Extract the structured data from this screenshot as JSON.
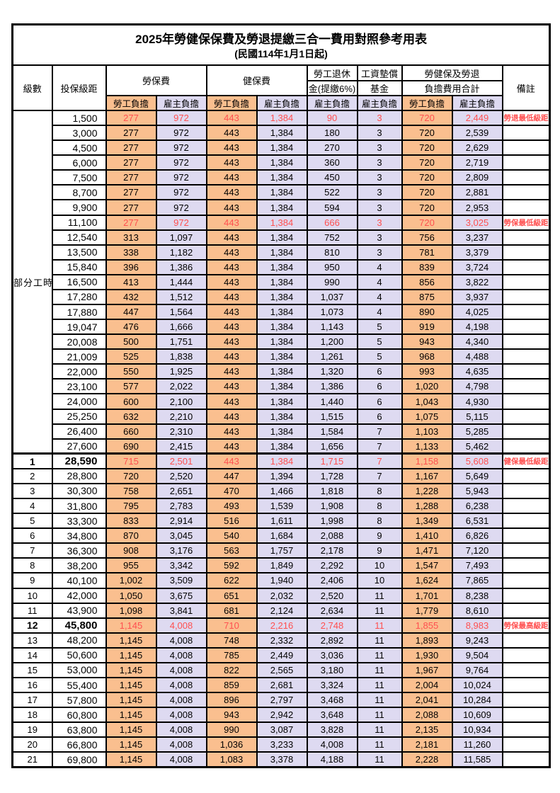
{
  "title": "2025年勞健保保費及勞退提繳三合一費用對照參考用表",
  "subtitle": "(民國114年1月1日起)",
  "colors": {
    "employee_bg": "#FABF8F",
    "employer_bg": "#DEDAF1",
    "highlight_red": "#FF5050",
    "grid": "#000000"
  },
  "header": {
    "level": "級數",
    "bracket": "投保級距",
    "labor_group": "勞保費",
    "health_group": "健保費",
    "pension_line1": "勞工退休",
    "pension_line2": "金(提繳6%)",
    "wage_fund_line1": "工資墊償",
    "wage_fund_line2": "基金",
    "total_line1": "勞健保及勞退",
    "total_line2": "負擔費用合計",
    "note": "備註",
    "employee": "勞工負擔",
    "employer": "雇主負擔"
  },
  "part_time_label": "部分工時",
  "part_time_span": 23,
  "rows": [
    {
      "bracket": "1,500",
      "values": [
        "277",
        "972",
        "443",
        "1,384",
        "90",
        "3",
        "720",
        "2,449"
      ],
      "note": "勞退最低級距",
      "red": true
    },
    {
      "bracket": "3,000",
      "values": [
        "277",
        "972",
        "443",
        "1,384",
        "180",
        "3",
        "720",
        "2,539"
      ]
    },
    {
      "bracket": "4,500",
      "values": [
        "277",
        "972",
        "443",
        "1,384",
        "270",
        "3",
        "720",
        "2,629"
      ]
    },
    {
      "bracket": "6,000",
      "values": [
        "277",
        "972",
        "443",
        "1,384",
        "360",
        "3",
        "720",
        "2,719"
      ]
    },
    {
      "bracket": "7,500",
      "values": [
        "277",
        "972",
        "443",
        "1,384",
        "450",
        "3",
        "720",
        "2,809"
      ]
    },
    {
      "bracket": "8,700",
      "values": [
        "277",
        "972",
        "443",
        "1,384",
        "522",
        "3",
        "720",
        "2,881"
      ]
    },
    {
      "bracket": "9,900",
      "values": [
        "277",
        "972",
        "443",
        "1,384",
        "594",
        "3",
        "720",
        "2,953"
      ]
    },
    {
      "bracket": "11,100",
      "values": [
        "277",
        "972",
        "443",
        "1,384",
        "666",
        "3",
        "720",
        "3,025"
      ],
      "note": "勞保最低級距",
      "red": true
    },
    {
      "bracket": "12,540",
      "values": [
        "313",
        "1,097",
        "443",
        "1,384",
        "752",
        "3",
        "756",
        "3,237"
      ]
    },
    {
      "bracket": "13,500",
      "values": [
        "338",
        "1,182",
        "443",
        "1,384",
        "810",
        "3",
        "781",
        "3,379"
      ]
    },
    {
      "bracket": "15,840",
      "values": [
        "396",
        "1,386",
        "443",
        "1,384",
        "950",
        "4",
        "839",
        "3,724"
      ]
    },
    {
      "bracket": "16,500",
      "values": [
        "413",
        "1,444",
        "443",
        "1,384",
        "990",
        "4",
        "856",
        "3,822"
      ]
    },
    {
      "bracket": "17,280",
      "values": [
        "432",
        "1,512",
        "443",
        "1,384",
        "1,037",
        "4",
        "875",
        "3,937"
      ]
    },
    {
      "bracket": "17,880",
      "values": [
        "447",
        "1,564",
        "443",
        "1,384",
        "1,073",
        "4",
        "890",
        "4,025"
      ]
    },
    {
      "bracket": "19,047",
      "values": [
        "476",
        "1,666",
        "443",
        "1,384",
        "1,143",
        "5",
        "919",
        "4,198"
      ]
    },
    {
      "bracket": "20,008",
      "values": [
        "500",
        "1,751",
        "443",
        "1,384",
        "1,200",
        "5",
        "943",
        "4,340"
      ]
    },
    {
      "bracket": "21,009",
      "values": [
        "525",
        "1,838",
        "443",
        "1,384",
        "1,261",
        "5",
        "968",
        "4,488"
      ]
    },
    {
      "bracket": "22,000",
      "values": [
        "550",
        "1,925",
        "443",
        "1,384",
        "1,320",
        "6",
        "993",
        "4,635"
      ]
    },
    {
      "bracket": "23,100",
      "values": [
        "577",
        "2,022",
        "443",
        "1,384",
        "1,386",
        "6",
        "1,020",
        "4,798"
      ]
    },
    {
      "bracket": "24,000",
      "values": [
        "600",
        "2,100",
        "443",
        "1,384",
        "1,440",
        "6",
        "1,043",
        "4,930"
      ]
    },
    {
      "bracket": "25,250",
      "values": [
        "632",
        "2,210",
        "443",
        "1,384",
        "1,515",
        "6",
        "1,075",
        "5,115"
      ]
    },
    {
      "bracket": "26,400",
      "values": [
        "660",
        "2,310",
        "443",
        "1,384",
        "1,584",
        "7",
        "1,103",
        "5,285"
      ]
    },
    {
      "bracket": "27,600",
      "values": [
        "690",
        "2,415",
        "443",
        "1,384",
        "1,656",
        "7",
        "1,133",
        "5,462"
      ]
    },
    {
      "level": "1",
      "bracket": "28,590",
      "values": [
        "715",
        "2,501",
        "443",
        "1,384",
        "1,715",
        "7",
        "1,158",
        "5,608"
      ],
      "note": "健保最低級距",
      "red": true,
      "key": true,
      "sect": true
    },
    {
      "level": "2",
      "bracket": "28,800",
      "values": [
        "720",
        "2,520",
        "447",
        "1,394",
        "1,728",
        "7",
        "1,167",
        "5,649"
      ]
    },
    {
      "level": "3",
      "bracket": "30,300",
      "values": [
        "758",
        "2,651",
        "470",
        "1,466",
        "1,818",
        "8",
        "1,228",
        "5,943"
      ]
    },
    {
      "level": "4",
      "bracket": "31,800",
      "values": [
        "795",
        "2,783",
        "493",
        "1,539",
        "1,908",
        "8",
        "1,288",
        "6,238"
      ]
    },
    {
      "level": "5",
      "bracket": "33,300",
      "values": [
        "833",
        "2,914",
        "516",
        "1,611",
        "1,998",
        "8",
        "1,349",
        "6,531"
      ]
    },
    {
      "level": "6",
      "bracket": "34,800",
      "values": [
        "870",
        "3,045",
        "540",
        "1,684",
        "2,088",
        "9",
        "1,410",
        "6,826"
      ]
    },
    {
      "level": "7",
      "bracket": "36,300",
      "values": [
        "908",
        "3,176",
        "563",
        "1,757",
        "2,178",
        "9",
        "1,471",
        "7,120"
      ]
    },
    {
      "level": "8",
      "bracket": "38,200",
      "values": [
        "955",
        "3,342",
        "592",
        "1,849",
        "2,292",
        "10",
        "1,547",
        "7,493"
      ]
    },
    {
      "level": "9",
      "bracket": "40,100",
      "values": [
        "1,002",
        "3,509",
        "622",
        "1,940",
        "2,406",
        "10",
        "1,624",
        "7,865"
      ]
    },
    {
      "level": "10",
      "bracket": "42,000",
      "values": [
        "1,050",
        "3,675",
        "651",
        "2,032",
        "2,520",
        "11",
        "1,701",
        "8,238"
      ]
    },
    {
      "level": "11",
      "bracket": "43,900",
      "values": [
        "1,098",
        "3,841",
        "681",
        "2,124",
        "2,634",
        "11",
        "1,779",
        "8,610"
      ]
    },
    {
      "level": "12",
      "bracket": "45,800",
      "values": [
        "1,145",
        "4,008",
        "710",
        "2,216",
        "2,748",
        "11",
        "1,855",
        "8,983"
      ],
      "note": "勞保最高級距",
      "red": true,
      "key": true
    },
    {
      "level": "13",
      "bracket": "48,200",
      "values": [
        "1,145",
        "4,008",
        "748",
        "2,332",
        "2,892",
        "11",
        "1,893",
        "9,243"
      ]
    },
    {
      "level": "14",
      "bracket": "50,600",
      "values": [
        "1,145",
        "4,008",
        "785",
        "2,449",
        "3,036",
        "11",
        "1,930",
        "9,504"
      ]
    },
    {
      "level": "15",
      "bracket": "53,000",
      "values": [
        "1,145",
        "4,008",
        "822",
        "2,565",
        "3,180",
        "11",
        "1,967",
        "9,764"
      ]
    },
    {
      "level": "16",
      "bracket": "55,400",
      "values": [
        "1,145",
        "4,008",
        "859",
        "2,681",
        "3,324",
        "11",
        "2,004",
        "10,024"
      ]
    },
    {
      "level": "17",
      "bracket": "57,800",
      "values": [
        "1,145",
        "4,008",
        "896",
        "2,797",
        "3,468",
        "11",
        "2,041",
        "10,284"
      ]
    },
    {
      "level": "18",
      "bracket": "60,800",
      "values": [
        "1,145",
        "4,008",
        "943",
        "2,942",
        "3,648",
        "11",
        "2,088",
        "10,609"
      ]
    },
    {
      "level": "19",
      "bracket": "63,800",
      "values": [
        "1,145",
        "4,008",
        "990",
        "3,087",
        "3,828",
        "11",
        "2,135",
        "10,934"
      ]
    },
    {
      "level": "20",
      "bracket": "66,800",
      "values": [
        "1,145",
        "4,008",
        "1,036",
        "3,233",
        "4,008",
        "11",
        "2,181",
        "11,260"
      ]
    },
    {
      "level": "21",
      "bracket": "69,800",
      "values": [
        "1,145",
        "4,008",
        "1,083",
        "3,378",
        "4,188",
        "11",
        "2,228",
        "11,585"
      ]
    }
  ]
}
